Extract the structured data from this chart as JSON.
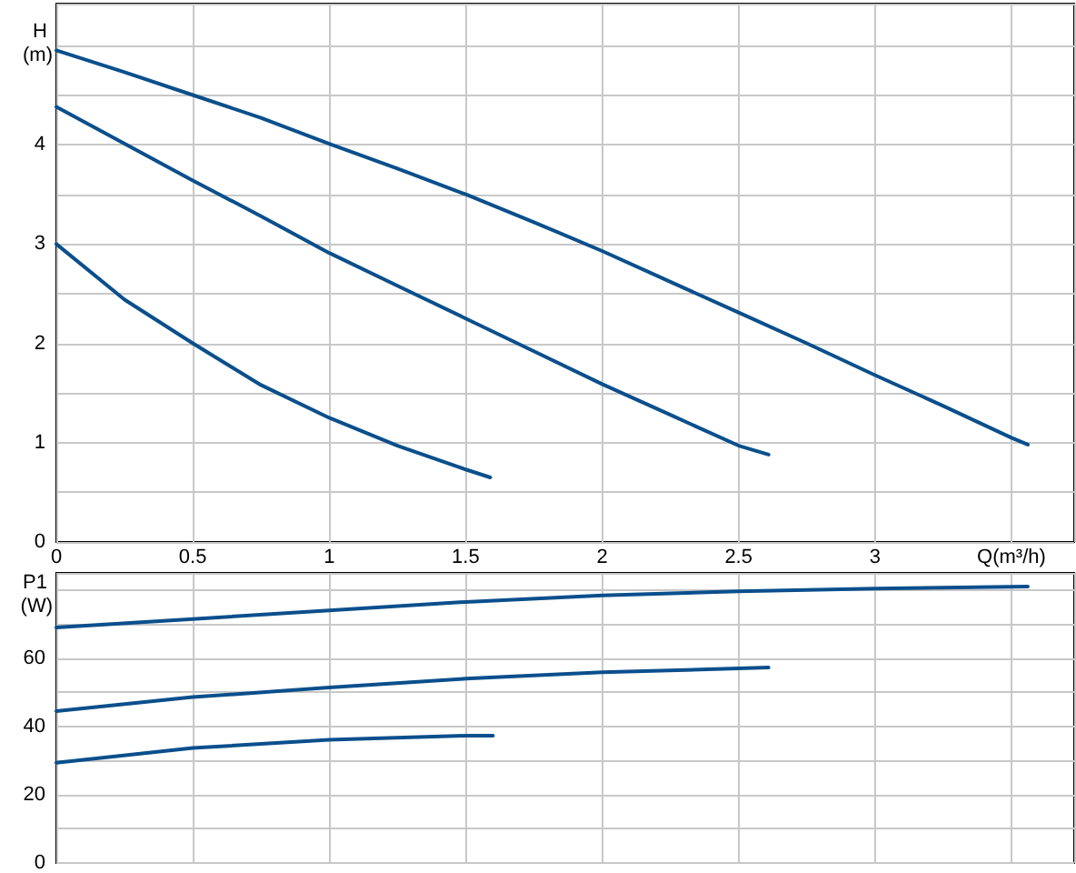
{
  "chart_data": [
    {
      "type": "line",
      "xlabel": "Q(m³/h)",
      "ylabel": "H (m)",
      "xlim": [
        0,
        3.73
      ],
      "ylim": [
        0,
        5.42
      ],
      "xticks": [
        0,
        0.5,
        1,
        1.5,
        2,
        2.5,
        3,
        {
          "value": 3.5,
          "label": null
        }
      ],
      "yticks": [
        0,
        {
          "value": 0.5,
          "label": null
        },
        1,
        {
          "value": 1.5,
          "label": null
        },
        2,
        {
          "value": 2.5,
          "label": null
        },
        3,
        {
          "value": 3.5,
          "label": null
        },
        4,
        {
          "value": 4.5,
          "label": null
        },
        {
          "value": 5,
          "label": null
        }
      ],
      "grid": true,
      "marker": "none",
      "line_style": "solid",
      "series": [
        {
          "color": "#0a4f8c",
          "x": [
            0,
            0.25,
            0.5,
            0.75,
            1,
            1.25,
            1.5,
            1.75,
            2,
            2.25,
            2.5,
            2.75,
            3,
            3.25,
            3.5,
            3.56
          ],
          "values": [
            4.95,
            4.73,
            4.5,
            4.27,
            4.01,
            3.76,
            3.5,
            3.22,
            2.93,
            2.62,
            2.31,
            2.0,
            1.68,
            1.37,
            1.05,
            0.98
          ]
        },
        {
          "color": "#0a4f8c",
          "x": [
            0,
            0.25,
            0.5,
            0.75,
            1,
            1.25,
            1.5,
            1.75,
            2,
            2.25,
            2.5,
            2.61
          ],
          "values": [
            4.38,
            4.01,
            3.64,
            3.28,
            2.91,
            2.58,
            2.25,
            1.92,
            1.59,
            1.28,
            0.97,
            0.88
          ]
        },
        {
          "color": "#0a4f8c",
          "x": [
            0,
            0.25,
            0.5,
            0.75,
            1,
            1.25,
            1.5,
            1.59
          ],
          "values": [
            3.0,
            2.44,
            2.0,
            1.58,
            1.25,
            0.97,
            0.73,
            0.65
          ]
        }
      ]
    },
    {
      "type": "line",
      "ylabel": "P1 (W)",
      "xlim": [
        0,
        3.73
      ],
      "ylim": [
        0,
        85
      ],
      "tick_labels": "y",
      "xticks": [
        0,
        0.5,
        1,
        1.5,
        2,
        2.5,
        3,
        3.5
      ],
      "yticks": [
        0,
        {
          "value": 10,
          "label": null
        },
        20,
        {
          "value": 30,
          "label": null
        },
        40,
        {
          "value": 50,
          "label": null
        },
        60,
        {
          "value": 70,
          "label": null
        },
        {
          "value": 80,
          "label": null
        }
      ],
      "grid": true,
      "marker": "none",
      "line_style": "solid",
      "series": [
        {
          "color": "#0a4f8c",
          "x": [
            0,
            0.5,
            1,
            1.5,
            2,
            2.5,
            3,
            3.56
          ],
          "values": [
            69,
            71.5,
            74,
            76.5,
            78.4,
            79.6,
            80.4,
            81
          ]
        },
        {
          "color": "#0a4f8c",
          "x": [
            0,
            0.5,
            1,
            1.5,
            2,
            2.5,
            2.61
          ],
          "values": [
            44.5,
            48.6,
            51.4,
            54,
            55.9,
            57,
            57.3
          ]
        },
        {
          "color": "#0a4f8c",
          "x": [
            0,
            0.5,
            1,
            1.5,
            1.6
          ],
          "values": [
            29.4,
            33.7,
            36.1,
            37.3,
            37.3
          ]
        }
      ]
    }
  ]
}
